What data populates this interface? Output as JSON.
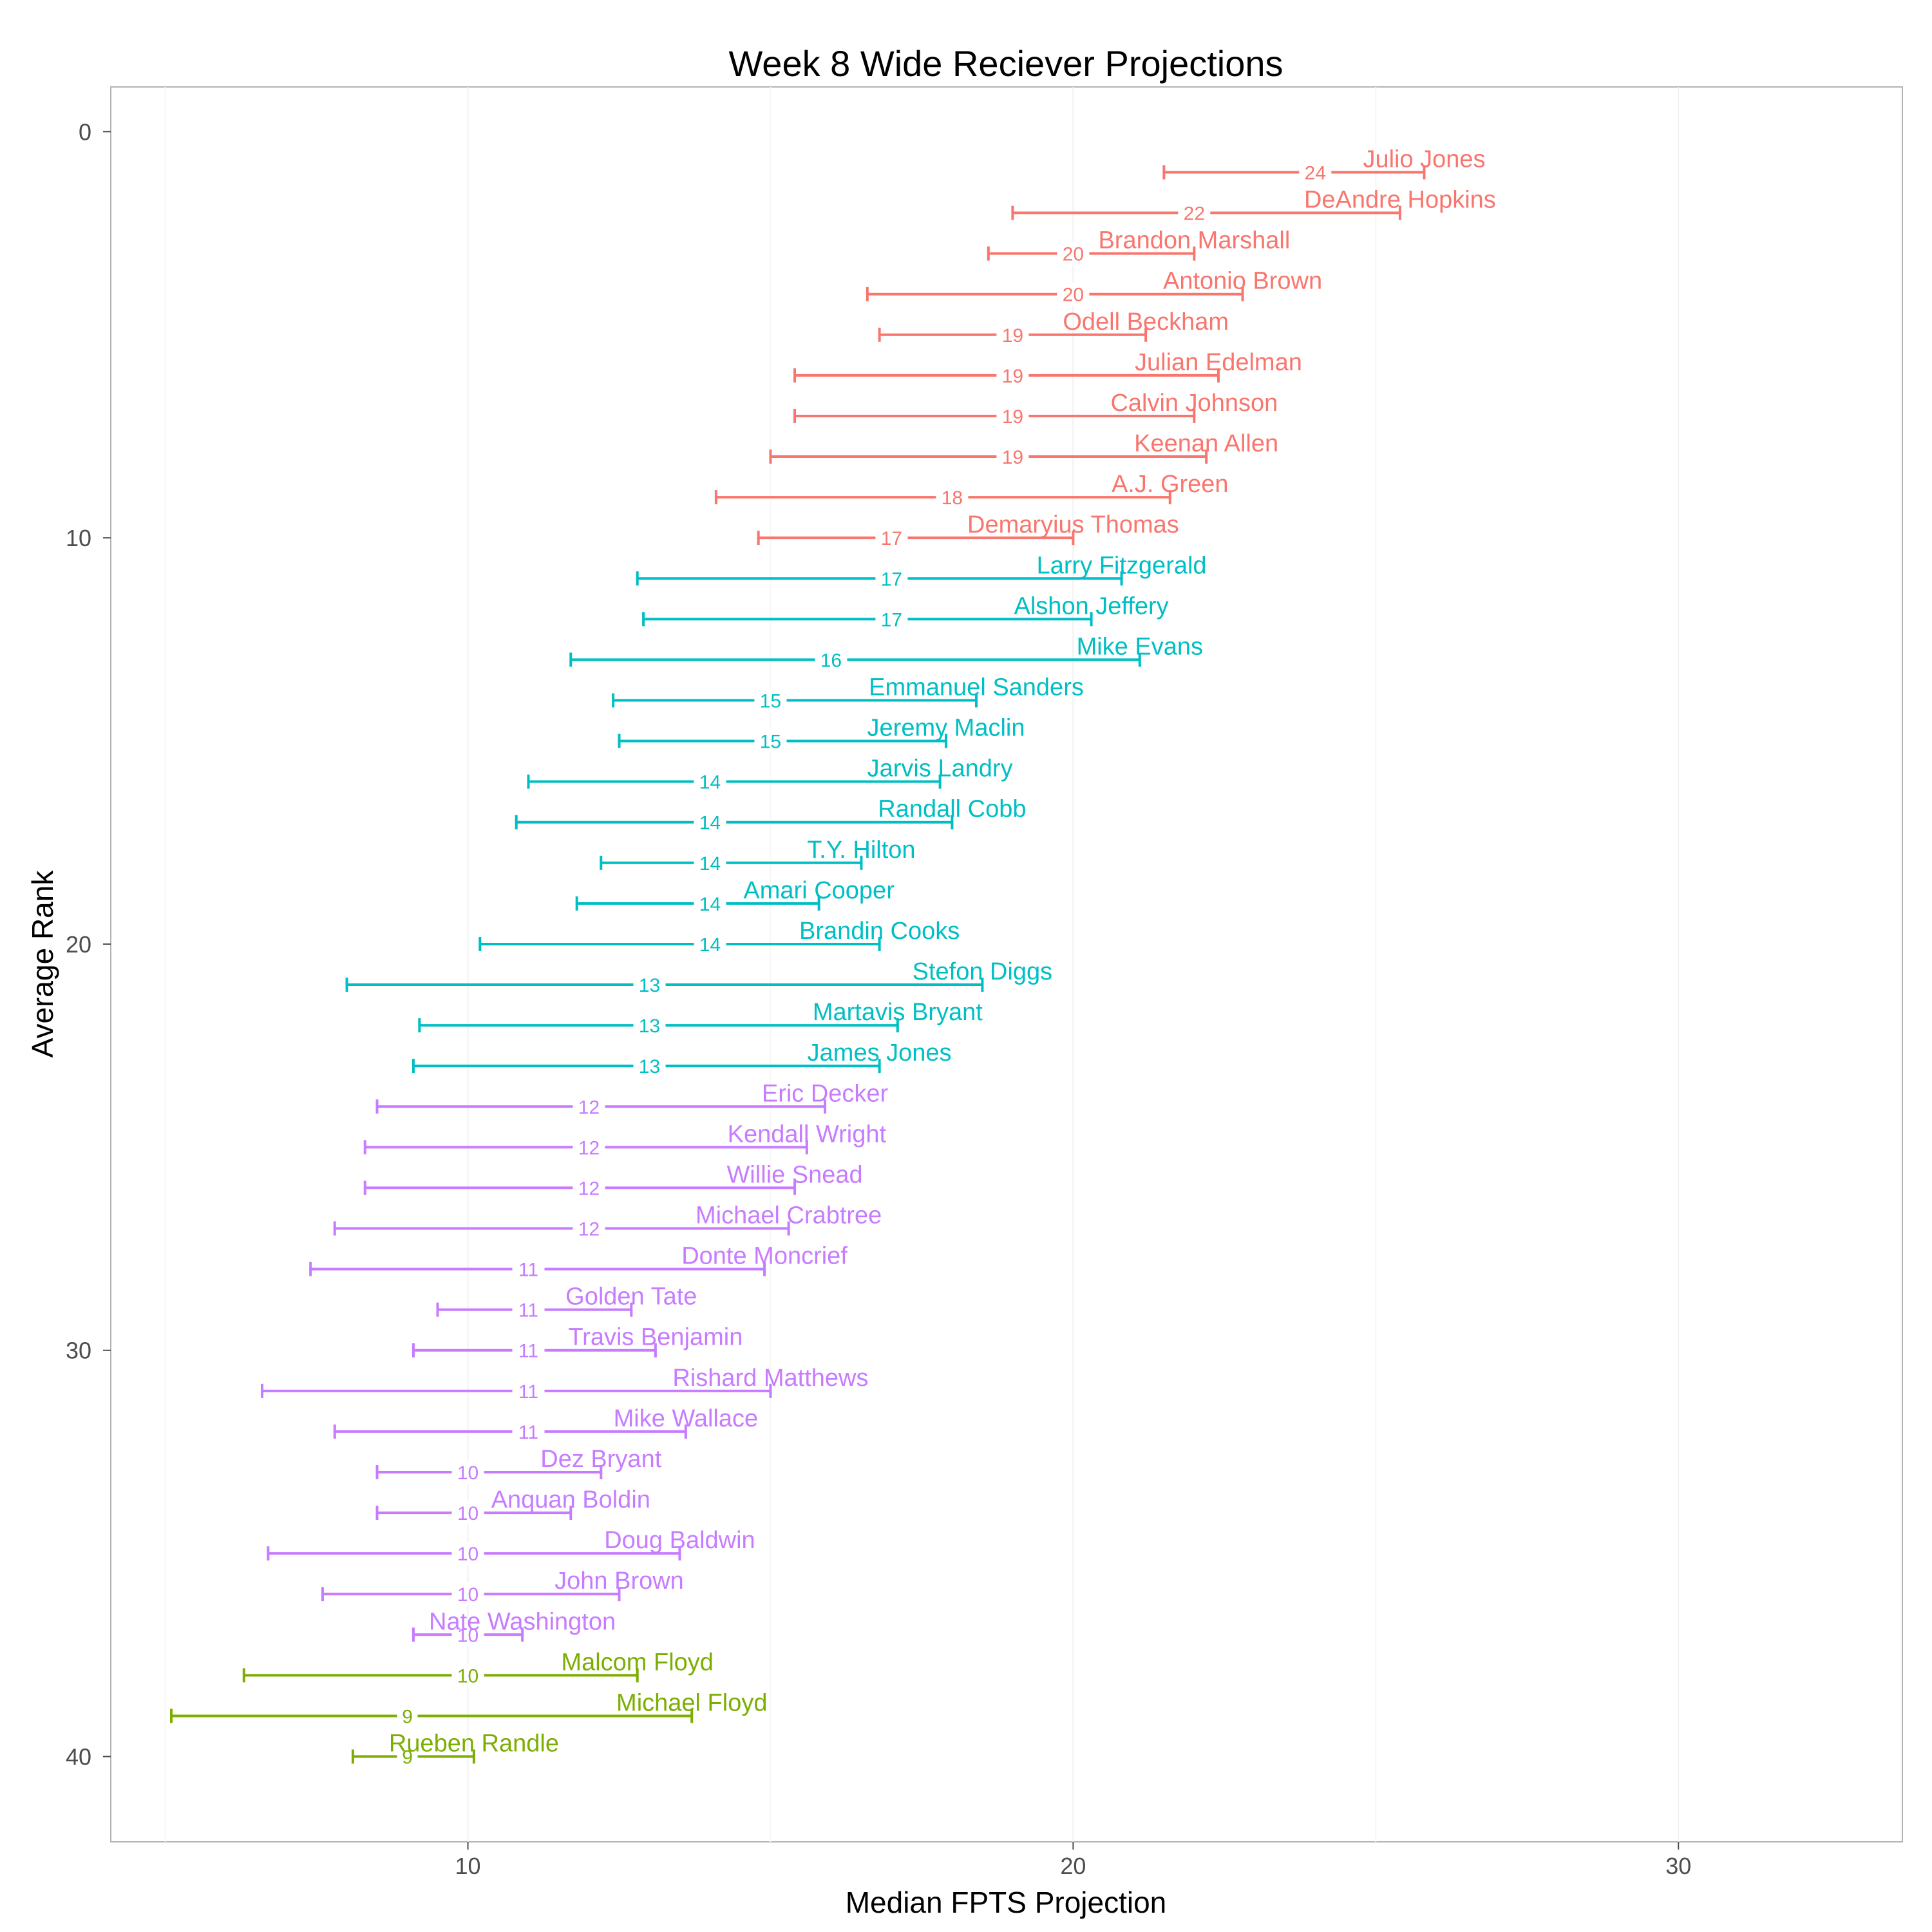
{
  "chart_data": {
    "type": "errorbar",
    "title": "Week 8 Wide Reciever Projections",
    "xlabel": "Median FPTS Projection",
    "ylabel": "Average Rank",
    "xlim": [
      4.1,
      33.7
    ],
    "ylim": [
      -1.1,
      42.1
    ],
    "x_ticks": [
      10,
      20,
      30
    ],
    "y_ticks": [
      0,
      10,
      20,
      30,
      40
    ],
    "y_reversed": true,
    "grid": true,
    "legend": "none",
    "tier_colors": [
      "#F8766D",
      "#00BFC4",
      "#C77CFF",
      "#7CAE00"
    ],
    "players": [
      {
        "name": "Julio Jones",
        "rank": 1,
        "median": 24,
        "low": 21.5,
        "high": 25.8,
        "tier": 0
      },
      {
        "name": "DeAndre Hopkins",
        "rank": 2,
        "median": 22,
        "low": 19.0,
        "high": 25.4,
        "tier": 0
      },
      {
        "name": "Brandon Marshall",
        "rank": 3,
        "median": 20,
        "low": 18.6,
        "high": 22.0,
        "tier": 0
      },
      {
        "name": "Antonio Brown",
        "rank": 4,
        "median": 20,
        "low": 16.6,
        "high": 22.8,
        "tier": 0
      },
      {
        "name": "Odell Beckham",
        "rank": 5,
        "median": 19,
        "low": 16.8,
        "high": 21.2,
        "tier": 0
      },
      {
        "name": "Julian Edelman",
        "rank": 6,
        "median": 19,
        "low": 15.4,
        "high": 22.4,
        "tier": 0
      },
      {
        "name": "Calvin Johnson",
        "rank": 7,
        "median": 19,
        "low": 15.4,
        "high": 22.0,
        "tier": 0
      },
      {
        "name": "Keenan Allen",
        "rank": 8,
        "median": 19,
        "low": 15.0,
        "high": 22.2,
        "tier": 0
      },
      {
        "name": "A.J. Green",
        "rank": 9,
        "median": 18,
        "low": 14.1,
        "high": 21.6,
        "tier": 0
      },
      {
        "name": "Demaryius Thomas",
        "rank": 10,
        "median": 17,
        "low": 14.8,
        "high": 20.0,
        "tier": 0
      },
      {
        "name": "Larry Fitzgerald",
        "rank": 11,
        "median": 17,
        "low": 12.8,
        "high": 20.8,
        "tier": 1
      },
      {
        "name": "Alshon Jeffery",
        "rank": 12,
        "median": 17,
        "low": 12.9,
        "high": 20.3,
        "tier": 1
      },
      {
        "name": "Mike Evans",
        "rank": 13,
        "median": 16,
        "low": 11.7,
        "high": 21.1,
        "tier": 1
      },
      {
        "name": "Emmanuel Sanders",
        "rank": 14,
        "median": 15,
        "low": 12.4,
        "high": 18.4,
        "tier": 1
      },
      {
        "name": "Jeremy Maclin",
        "rank": 15,
        "median": 15,
        "low": 12.5,
        "high": 17.9,
        "tier": 1
      },
      {
        "name": "Jarvis Landry",
        "rank": 16,
        "median": 14,
        "low": 11.0,
        "high": 17.8,
        "tier": 1
      },
      {
        "name": "Randall Cobb",
        "rank": 17,
        "median": 14,
        "low": 10.8,
        "high": 18.0,
        "tier": 1
      },
      {
        "name": "T.Y. Hilton",
        "rank": 18,
        "median": 14,
        "low": 12.2,
        "high": 16.5,
        "tier": 1
      },
      {
        "name": "Amari Cooper",
        "rank": 19,
        "median": 14,
        "low": 11.8,
        "high": 15.8,
        "tier": 1
      },
      {
        "name": "Brandin Cooks",
        "rank": 20,
        "median": 14,
        "low": 10.2,
        "high": 16.8,
        "tier": 1
      },
      {
        "name": "Stefon Diggs",
        "rank": 21,
        "median": 13,
        "low": 8.0,
        "high": 18.5,
        "tier": 1
      },
      {
        "name": "Martavis Bryant",
        "rank": 22,
        "median": 13,
        "low": 9.2,
        "high": 17.1,
        "tier": 1
      },
      {
        "name": "James Jones",
        "rank": 23,
        "median": 13,
        "low": 9.1,
        "high": 16.8,
        "tier": 1
      },
      {
        "name": "Eric Decker",
        "rank": 24,
        "median": 12,
        "low": 8.5,
        "high": 15.9,
        "tier": 2
      },
      {
        "name": "Kendall Wright",
        "rank": 25,
        "median": 12,
        "low": 8.3,
        "high": 15.6,
        "tier": 2
      },
      {
        "name": "Willie Snead",
        "rank": 26,
        "median": 12,
        "low": 8.3,
        "high": 15.4,
        "tier": 2
      },
      {
        "name": "Michael Crabtree",
        "rank": 27,
        "median": 12,
        "low": 7.8,
        "high": 15.3,
        "tier": 2
      },
      {
        "name": "Donte Moncrief",
        "rank": 28,
        "median": 11,
        "low": 7.4,
        "high": 14.9,
        "tier": 2
      },
      {
        "name": "Golden Tate",
        "rank": 29,
        "median": 11,
        "low": 9.5,
        "high": 12.7,
        "tier": 2
      },
      {
        "name": "Travis Benjamin",
        "rank": 30,
        "median": 11,
        "low": 9.1,
        "high": 13.1,
        "tier": 2
      },
      {
        "name": "Rishard Matthews",
        "rank": 31,
        "median": 11,
        "low": 6.6,
        "high": 15.0,
        "tier": 2
      },
      {
        "name": "Mike Wallace",
        "rank": 32,
        "median": 11,
        "low": 7.8,
        "high": 13.6,
        "tier": 2
      },
      {
        "name": "Dez Bryant",
        "rank": 33,
        "median": 10,
        "low": 8.5,
        "high": 12.2,
        "tier": 2
      },
      {
        "name": "Anquan Boldin",
        "rank": 34,
        "median": 10,
        "low": 8.5,
        "high": 11.7,
        "tier": 2
      },
      {
        "name": "Doug Baldwin",
        "rank": 35,
        "median": 10,
        "low": 6.7,
        "high": 13.5,
        "tier": 2
      },
      {
        "name": "John Brown",
        "rank": 36,
        "median": 10,
        "low": 7.6,
        "high": 12.5,
        "tier": 2
      },
      {
        "name": "Nate Washington",
        "rank": 37,
        "median": 10,
        "low": 9.1,
        "high": 10.9,
        "tier": 2
      },
      {
        "name": "Malcom Floyd",
        "rank": 38,
        "median": 10,
        "low": 6.3,
        "high": 12.8,
        "tier": 3
      },
      {
        "name": "Michael Floyd",
        "rank": 39,
        "median": 9,
        "low": 5.1,
        "high": 13.7,
        "tier": 3
      },
      {
        "name": "Rueben Randle",
        "rank": 40,
        "median": 9,
        "low": 8.1,
        "high": 10.1,
        "tier": 3
      }
    ]
  }
}
